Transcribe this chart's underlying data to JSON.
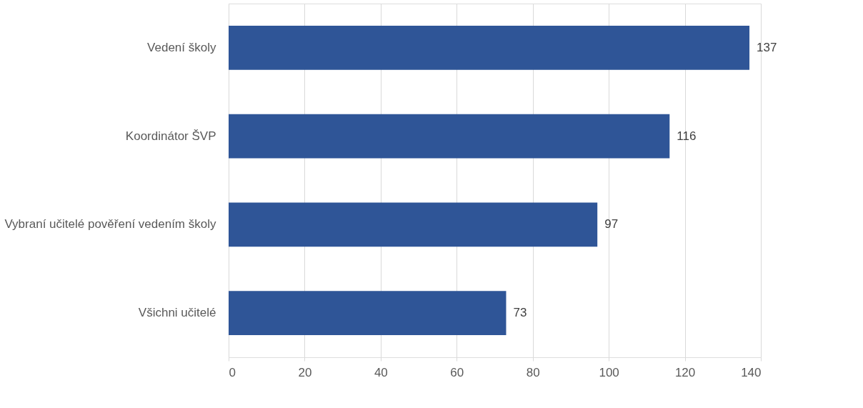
{
  "chart_data": {
    "type": "bar",
    "orientation": "horizontal",
    "categories": [
      "Vedení školy",
      "Koordinátor ŠVP",
      "Vybraní učitelé pověření vedením školy",
      "Všichni učitelé"
    ],
    "values": [
      137,
      116,
      97,
      73
    ],
    "color": "#2f5597",
    "xlim": [
      0,
      140
    ],
    "xticks": [
      0,
      20,
      40,
      60,
      80,
      100,
      120,
      140
    ],
    "grid": "x",
    "data_labels": true
  }
}
